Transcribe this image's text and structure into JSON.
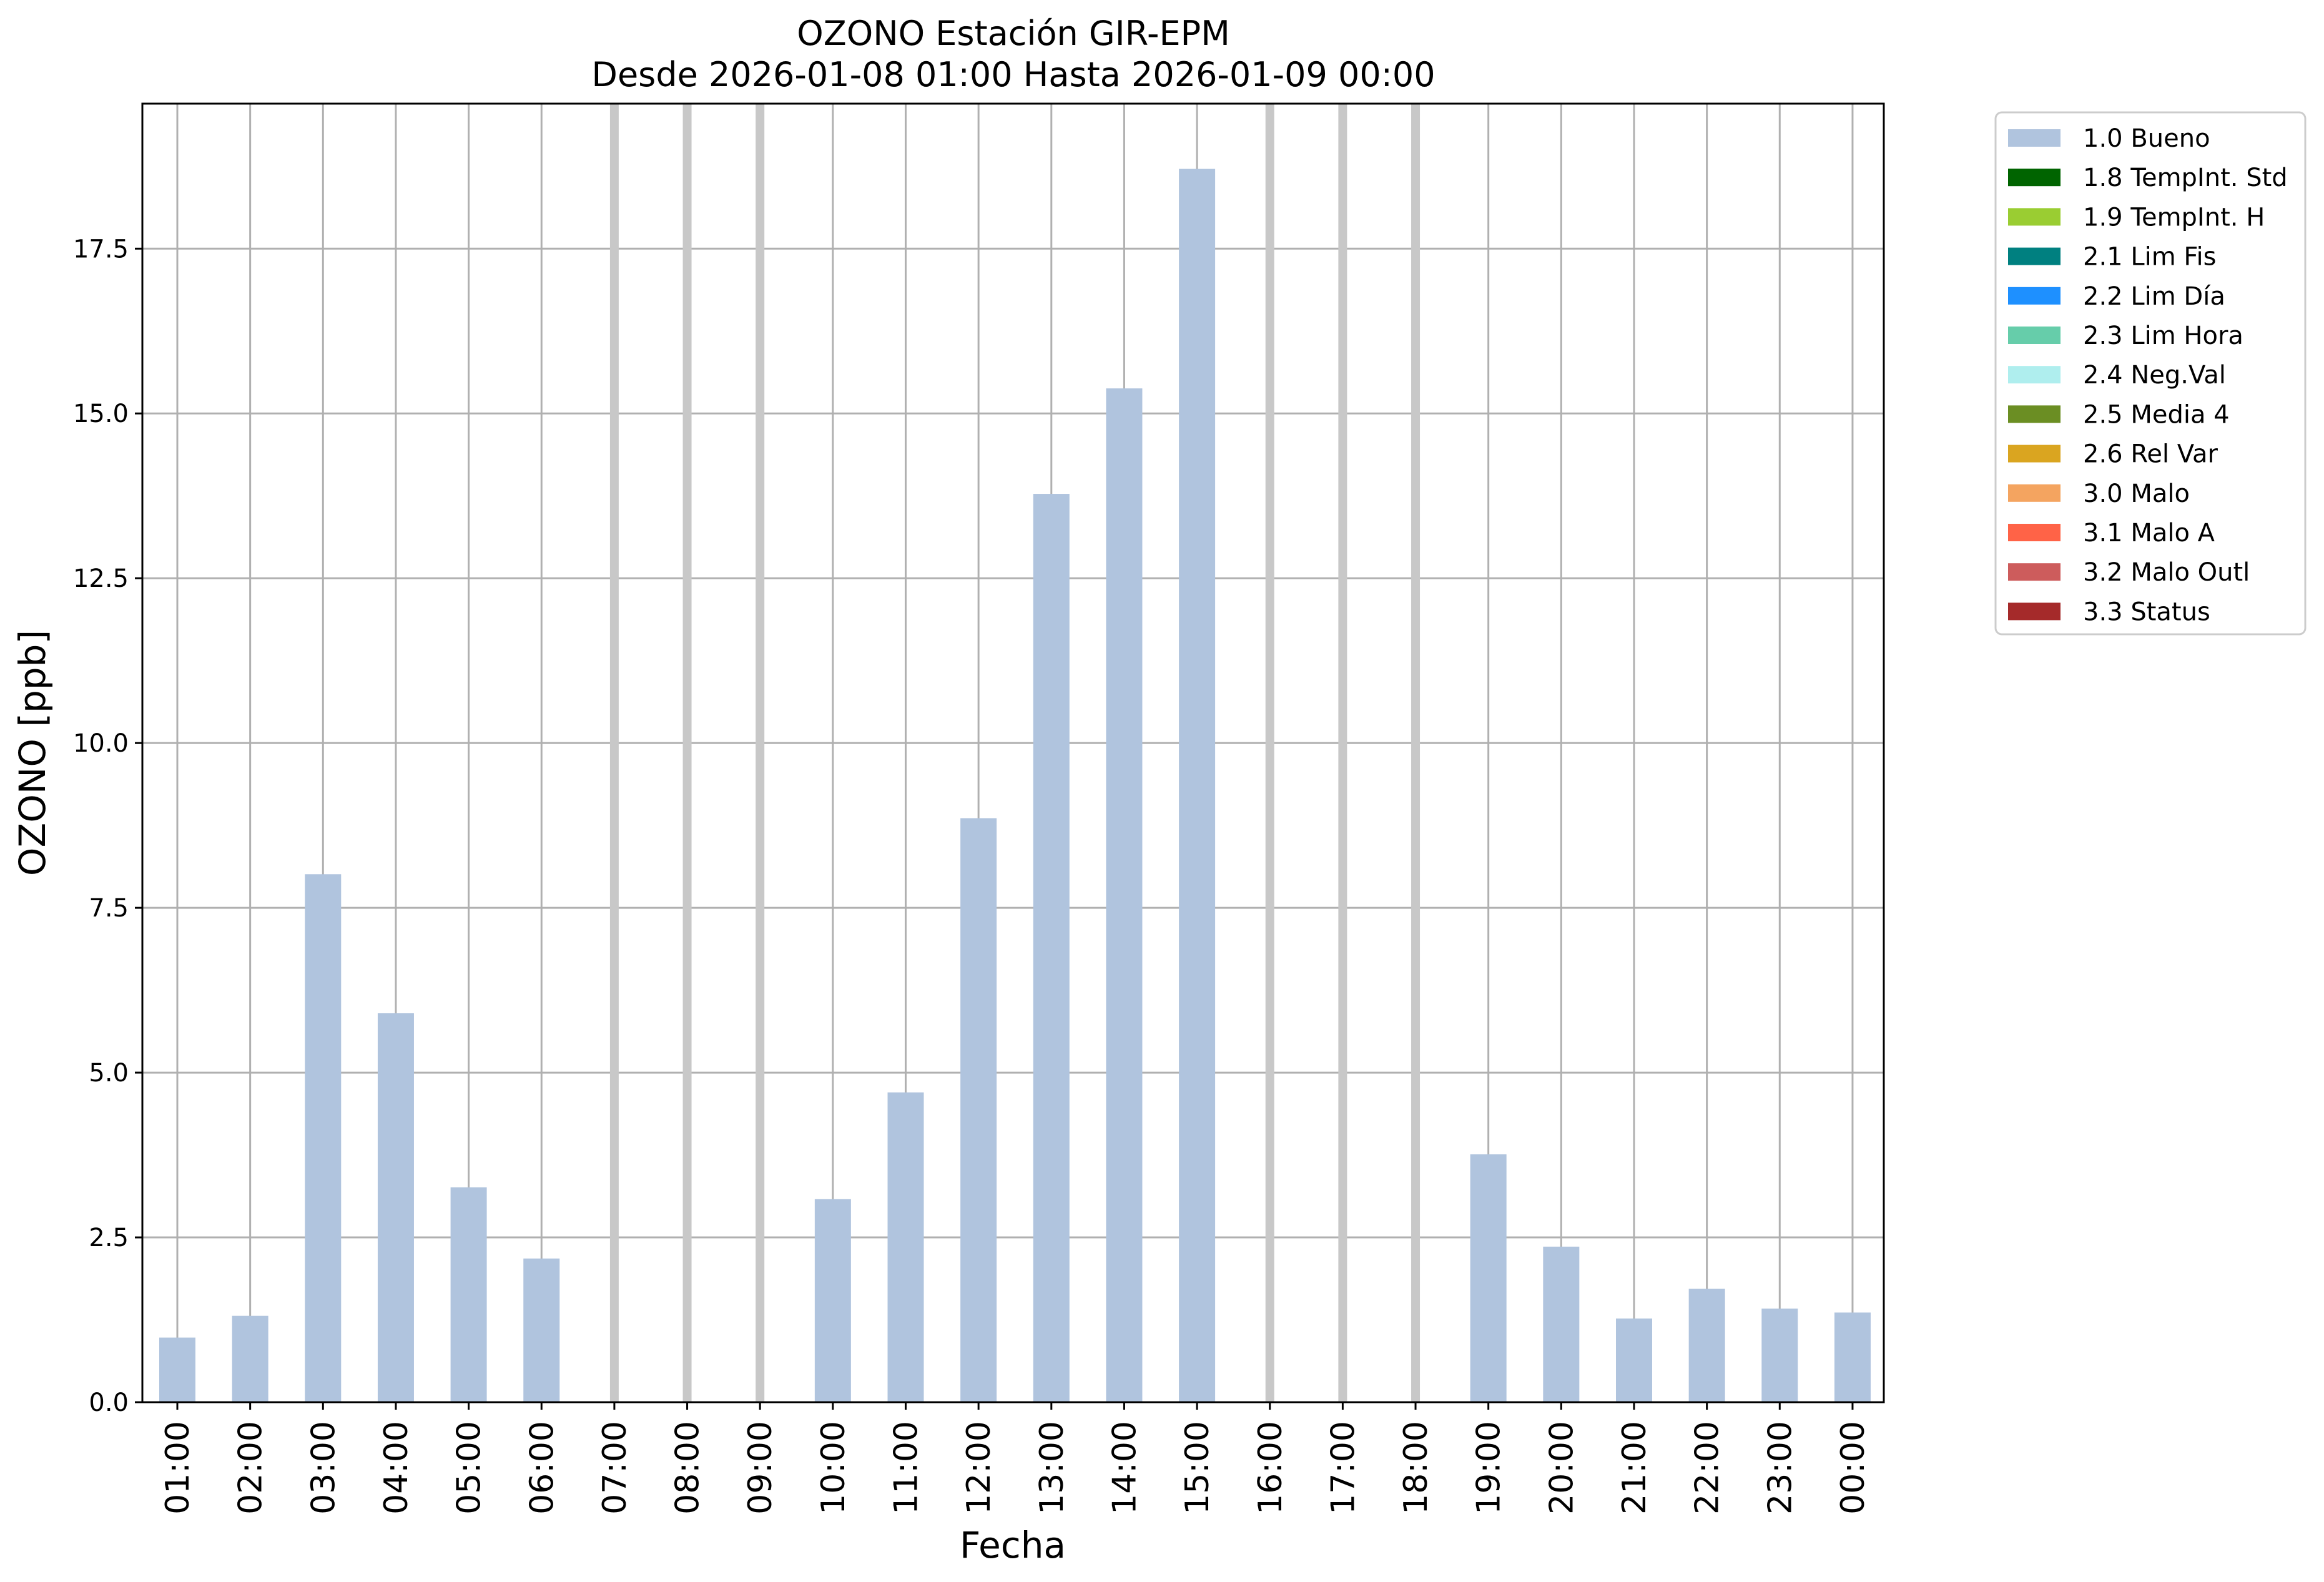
{
  "chart_data": {
    "type": "bar",
    "title": "OZONO Estación GIR-EPM",
    "subtitle": "Desde 2026-01-08 01:00 Hasta 2026-01-09 00:00",
    "xlabel": "Fecha",
    "ylabel": "OZONO [ppb]",
    "ylim": [
      0,
      19.7
    ],
    "yticks": [
      "0.0",
      "2.5",
      "5.0",
      "7.5",
      "10.0",
      "12.5",
      "15.0",
      "17.5"
    ],
    "grid": true,
    "legend_position": "outside-right",
    "categories": [
      "01:00",
      "02:00",
      "03:00",
      "04:00",
      "05:00",
      "06:00",
      "07:00",
      "08:00",
      "09:00",
      "10:00",
      "11:00",
      "12:00",
      "13:00",
      "14:00",
      "15:00",
      "16:00",
      "17:00",
      "18:00",
      "19:00",
      "20:00",
      "21:00",
      "22:00",
      "23:00",
      "00:00"
    ],
    "missing": [
      "07:00",
      "08:00",
      "09:00",
      "16:00",
      "17:00",
      "18:00"
    ],
    "series": [
      {
        "name": "1.0 Bueno",
        "color": "#b0c4de",
        "values": [
          0.98,
          1.31,
          8.01,
          5.9,
          3.26,
          2.18,
          null,
          null,
          null,
          3.08,
          4.7,
          8.86,
          13.78,
          15.38,
          18.71,
          null,
          null,
          null,
          3.76,
          2.36,
          1.27,
          1.72,
          1.42,
          1.36
        ]
      }
    ],
    "legend": [
      {
        "label": "1.0 Bueno",
        "color": "#b0c4de"
      },
      {
        "label": "1.8 TempInt. Std",
        "color": "#006400"
      },
      {
        "label": "1.9 TempInt. H",
        "color": "#9acd32"
      },
      {
        "label": "2.1 Lim Fis",
        "color": "#008080"
      },
      {
        "label": "2.2 Lim Día",
        "color": "#1e90ff"
      },
      {
        "label": "2.3 Lim Hora",
        "color": "#66cdaa"
      },
      {
        "label": "2.4 Neg.Val",
        "color": "#afeeee"
      },
      {
        "label": "2.5 Media 4",
        "color": "#6b8e23"
      },
      {
        "label": "2.6 Rel Var",
        "color": "#daa520"
      },
      {
        "label": "3.0 Malo",
        "color": "#f4a460"
      },
      {
        "label": "3.1 Malo A",
        "color": "#ff6347"
      },
      {
        "label": "3.2 Malo Outl",
        "color": "#cd5c5c"
      },
      {
        "label": "3.3 Status",
        "color": "#a52a2a"
      }
    ]
  }
}
